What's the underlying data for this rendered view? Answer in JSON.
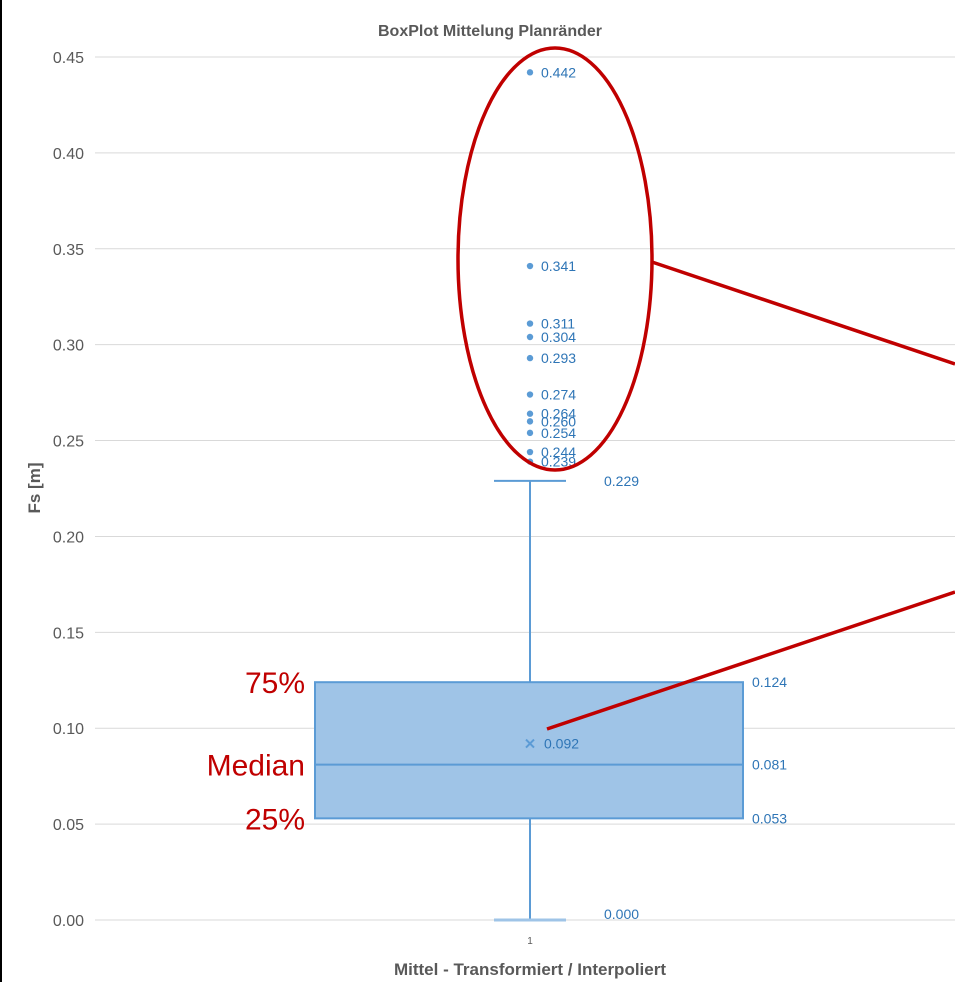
{
  "chart_data": {
    "type": "box",
    "title": "BoxPlot Mittelung Planränder",
    "xlabel": "Mittel - Transformiert / Interpoliert",
    "ylabel": "Fs [m]",
    "categories": [
      "1"
    ],
    "ylim": [
      0,
      0.45
    ],
    "yticks": [
      "0.00",
      "0.05",
      "0.10",
      "0.15",
      "0.20",
      "0.25",
      "0.30",
      "0.35",
      "0.40",
      "0.45"
    ],
    "grid": true,
    "box": {
      "min": 0.0,
      "q1": 0.053,
      "median": 0.081,
      "q3": 0.124,
      "whisker_high": 0.229,
      "mean": 0.092,
      "labels": {
        "min": "0.000",
        "q1": "0.053",
        "median": "0.081",
        "q3": "0.124",
        "whisker_high": "0.229",
        "mean": "0.092"
      }
    },
    "outliers": [
      {
        "value": 0.442,
        "label": "0.442"
      },
      {
        "value": 0.341,
        "label": "0.341"
      },
      {
        "value": 0.311,
        "label": "0.311"
      },
      {
        "value": 0.304,
        "label": "0.304"
      },
      {
        "value": 0.293,
        "label": "0.293"
      },
      {
        "value": 0.274,
        "label": "0.274"
      },
      {
        "value": 0.264,
        "label": "0.264"
      },
      {
        "value": 0.26,
        "label": "0.260"
      },
      {
        "value": 0.254,
        "label": "0.254"
      },
      {
        "value": 0.244,
        "label": "0.244"
      },
      {
        "value": 0.239,
        "label": "0.239"
      }
    ],
    "annotations": {
      "q3_label": "75%",
      "median_label": "Median",
      "q1_label": "25%"
    },
    "colors": {
      "box_fill": "#9fc4e7",
      "box_stroke": "#5b9bd5",
      "value_text": "#2e75b6",
      "annotation": "#c00000",
      "grid": "#d9d9d9",
      "axis_text": "#595959"
    }
  }
}
